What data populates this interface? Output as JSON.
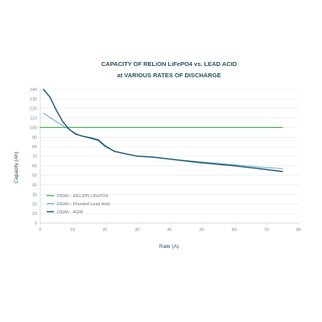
{
  "chart_data": {
    "type": "line",
    "title_lines": [
      "CAPACITY OF RELiON LiFePO4 vs. LEAD ACID",
      "at VARIOUS RATES OF DISCHARGE"
    ],
    "xlabel": "Rate (A)",
    "ylabel": "Capacity (Ah)",
    "xlim": [
      0,
      80
    ],
    "ylim": [
      0,
      140
    ],
    "xticks": [
      0,
      10,
      20,
      30,
      40,
      50,
      60,
      70,
      80
    ],
    "yticks": [
      0,
      10,
      20,
      30,
      40,
      50,
      60,
      70,
      80,
      90,
      100,
      110,
      120,
      130,
      140
    ],
    "grid": "horizontal",
    "legend_position": "lower-left",
    "series": [
      {
        "name": "100Ah - RELiON LiFePO4",
        "color": "#4caf50",
        "x": [
          0,
          75
        ],
        "y": [
          100,
          100
        ]
      },
      {
        "name": "100Ah - Flooded Lead Acid",
        "color": "#6ea6c4",
        "x": [
          1,
          5,
          8,
          10,
          12,
          15,
          18,
          20,
          23,
          27,
          30,
          35,
          40,
          50,
          60,
          70,
          75
        ],
        "y": [
          115,
          106,
          100,
          96,
          92,
          89,
          86,
          80,
          75,
          72,
          70,
          69,
          67,
          64,
          61,
          58,
          57
        ]
      },
      {
        "name": "100Ah - AGM",
        "color": "#1a5470",
        "x": [
          1,
          3,
          5,
          7,
          9,
          11,
          13,
          16,
          18,
          20,
          23,
          27,
          30,
          35,
          40,
          50,
          60,
          70,
          75
        ],
        "y": [
          140,
          132,
          118,
          106,
          98,
          93,
          91,
          89,
          87,
          81,
          75,
          72,
          70,
          69,
          67,
          63,
          60,
          56,
          54
        ]
      }
    ]
  }
}
